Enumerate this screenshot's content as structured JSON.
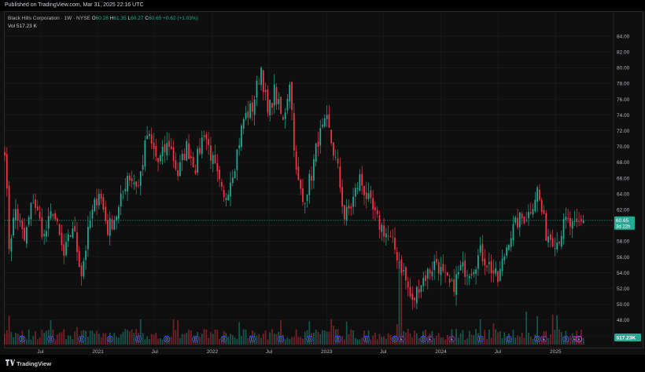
{
  "header": {
    "published": "Published on TradingView.com, Mar 31, 2025 22:16 UTC"
  },
  "legend": {
    "symbol": "Black Hills Corporation · 1W · NYSE",
    "o_label": "O",
    "o": "60.28",
    "h_label": "H",
    "h": "61.35",
    "l_label": "L",
    "l": "60.27",
    "c_label": "C",
    "c": "60.65",
    "change": "+0.62 (+1.03%)",
    "vol_label": "Vol",
    "vol": "517.23 K"
  },
  "price_tag": {
    "price": "60.65",
    "countdown": "3d 22h"
  },
  "volume_tag": "517.23K",
  "footer": {
    "brand": "TradingView"
  },
  "colors": {
    "up": "#22ab94",
    "down": "#f23645",
    "background": "#0f0f0f",
    "grid": "#1e1e1e",
    "tag": "#22ab94",
    "earnings_badge": "#2962ff",
    "dividend_badge": "#7b1fa2"
  },
  "chart_data": {
    "type": "candlestick",
    "symbol": "Black Hills Corporation",
    "timeframe": "1W",
    "exchange": "NYSE",
    "y_axis": {
      "ticks": [
        46.0,
        48.0,
        50.0,
        52.0,
        54.0,
        56.0,
        58.0,
        60.0,
        62.0,
        64.0,
        66.0,
        68.0,
        70.0,
        72.0,
        74.0,
        76.0,
        78.0,
        80.0,
        82.0,
        84.0
      ],
      "ylim": [
        44.8,
        85.0
      ]
    },
    "x_axis": {
      "labels": [
        "Jul",
        "2021",
        "Jul",
        "2022",
        "Jul",
        "2023",
        "Jul",
        "2024",
        "Jul",
        "2025"
      ],
      "dates": [
        "2020-07-01",
        "2021-01-01",
        "2021-07-01",
        "2022-01-01",
        "2022-07-01",
        "2023-01-01",
        "2023-07-01",
        "2024-01-01",
        "2024-07-01",
        "2025-01-01"
      ],
      "range": [
        "2020-03-09",
        "2025-04-21"
      ]
    },
    "close_path": [
      [
        "2020-03-09",
        70.0
      ],
      [
        "2020-03-23",
        57.5
      ],
      [
        "2020-04-13",
        62.0
      ],
      [
        "2020-05-11",
        58.0
      ],
      [
        "2020-06-08",
        63.5
      ],
      [
        "2020-07-13",
        58.5
      ],
      [
        "2020-08-10",
        62.0
      ],
      [
        "2020-09-14",
        56.0
      ],
      [
        "2020-10-12",
        60.0
      ],
      [
        "2020-11-09",
        54.0
      ],
      [
        "2020-12-07",
        60.5
      ],
      [
        "2021-01-04",
        64.5
      ],
      [
        "2021-02-01",
        59.5
      ],
      [
        "2021-03-08",
        62.0
      ],
      [
        "2021-04-05",
        66.5
      ],
      [
        "2021-05-10",
        65.0
      ],
      [
        "2021-06-07",
        71.5
      ],
      [
        "2021-07-12",
        68.0
      ],
      [
        "2021-08-16",
        70.5
      ],
      [
        "2021-09-13",
        66.5
      ],
      [
        "2021-10-11",
        70.0
      ],
      [
        "2021-11-08",
        67.5
      ],
      [
        "2021-12-06",
        72.0
      ],
      [
        "2022-01-03",
        68.0
      ],
      [
        "2022-02-07",
        63.0
      ],
      [
        "2022-03-14",
        68.0
      ],
      [
        "2022-04-11",
        73.5
      ],
      [
        "2022-05-09",
        75.0
      ],
      [
        "2022-06-06",
        80.0
      ],
      [
        "2022-06-27",
        74.0
      ],
      [
        "2022-07-18",
        77.0
      ],
      [
        "2022-08-15",
        73.0
      ],
      [
        "2022-09-05",
        78.5
      ],
      [
        "2022-09-26",
        66.5
      ],
      [
        "2022-10-17",
        63.0
      ],
      [
        "2022-11-14",
        66.5
      ],
      [
        "2022-12-05",
        71.0
      ],
      [
        "2023-01-02",
        73.0
      ],
      [
        "2023-02-06",
        67.0
      ],
      [
        "2023-02-27",
        61.0
      ],
      [
        "2023-03-20",
        62.5
      ],
      [
        "2023-04-17",
        66.0
      ],
      [
        "2023-05-15",
        63.0
      ],
      [
        "2023-06-12",
        60.5
      ],
      [
        "2023-07-10",
        59.0
      ],
      [
        "2023-08-07",
        57.0
      ],
      [
        "2023-09-04",
        54.0
      ],
      [
        "2023-10-02",
        50.0
      ],
      [
        "2023-10-23",
        52.5
      ],
      [
        "2023-11-20",
        54.0
      ],
      [
        "2023-12-18",
        55.5
      ],
      [
        "2024-01-08",
        53.5
      ],
      [
        "2024-02-05",
        52.0
      ],
      [
        "2024-03-04",
        54.5
      ],
      [
        "2024-04-08",
        54.5
      ],
      [
        "2024-05-06",
        56.5
      ],
      [
        "2024-06-03",
        55.0
      ],
      [
        "2024-07-01",
        53.0
      ],
      [
        "2024-08-05",
        58.5
      ],
      [
        "2024-09-02",
        60.5
      ],
      [
        "2024-10-07",
        61.5
      ],
      [
        "2024-11-04",
        64.5
      ],
      [
        "2024-12-02",
        59.0
      ],
      [
        "2025-01-06",
        58.0
      ],
      [
        "2025-02-03",
        60.5
      ],
      [
        "2025-03-03",
        59.5
      ],
      [
        "2025-03-31",
        60.65
      ]
    ],
    "last": {
      "open": 60.28,
      "high": 61.35,
      "low": 60.27,
      "close": 60.65,
      "change": 0.62,
      "change_pct": 1.03
    },
    "volume_last": "517.23K",
    "event_markers": [
      {
        "date": "2020-05-04",
        "type": "dividend",
        "label": "D"
      },
      {
        "date": "2020-08-03",
        "type": "dividend",
        "label": "D"
      },
      {
        "date": "2020-11-09",
        "type": "dividend",
        "label": "D"
      },
      {
        "date": "2021-02-08",
        "type": "dividend",
        "label": "D"
      },
      {
        "date": "2021-05-10",
        "type": "dividend",
        "label": "D"
      },
      {
        "date": "2021-08-09",
        "type": "dividend",
        "label": "D"
      },
      {
        "date": "2021-11-08",
        "type": "dividend",
        "label": "D"
      },
      {
        "date": "2022-02-07",
        "type": "dividend",
        "label": "D"
      },
      {
        "date": "2022-05-09",
        "type": "dividend",
        "label": "D"
      },
      {
        "date": "2022-08-08",
        "type": "dividend",
        "label": "D"
      },
      {
        "date": "2022-11-07",
        "type": "dividend",
        "label": "D"
      },
      {
        "date": "2023-02-06",
        "type": "dividend",
        "label": "D"
      },
      {
        "date": "2023-05-08",
        "type": "dividend",
        "label": "D"
      },
      {
        "date": "2023-08-07",
        "type": "dividend",
        "label": "D"
      },
      {
        "date": "2023-08-28",
        "type": "earnings",
        "label": "E"
      },
      {
        "date": "2023-11-06",
        "type": "dividend",
        "label": "D"
      },
      {
        "date": "2023-11-27",
        "type": "earnings",
        "label": "E"
      },
      {
        "date": "2024-02-05",
        "type": "earnings",
        "label": "E"
      },
      {
        "date": "2024-05-06",
        "type": "dividend",
        "label": "D"
      },
      {
        "date": "2024-08-05",
        "type": "dividend",
        "label": "D"
      },
      {
        "date": "2024-11-04",
        "type": "dividend",
        "label": "D"
      },
      {
        "date": "2024-11-25",
        "type": "earnings",
        "label": "E"
      },
      {
        "date": "2025-02-03",
        "type": "dividend",
        "label": "D"
      },
      {
        "date": "2025-03-03",
        "type": "earnings",
        "label": "E"
      },
      {
        "date": "2025-03-17",
        "type": "split",
        "label": "E"
      }
    ]
  }
}
